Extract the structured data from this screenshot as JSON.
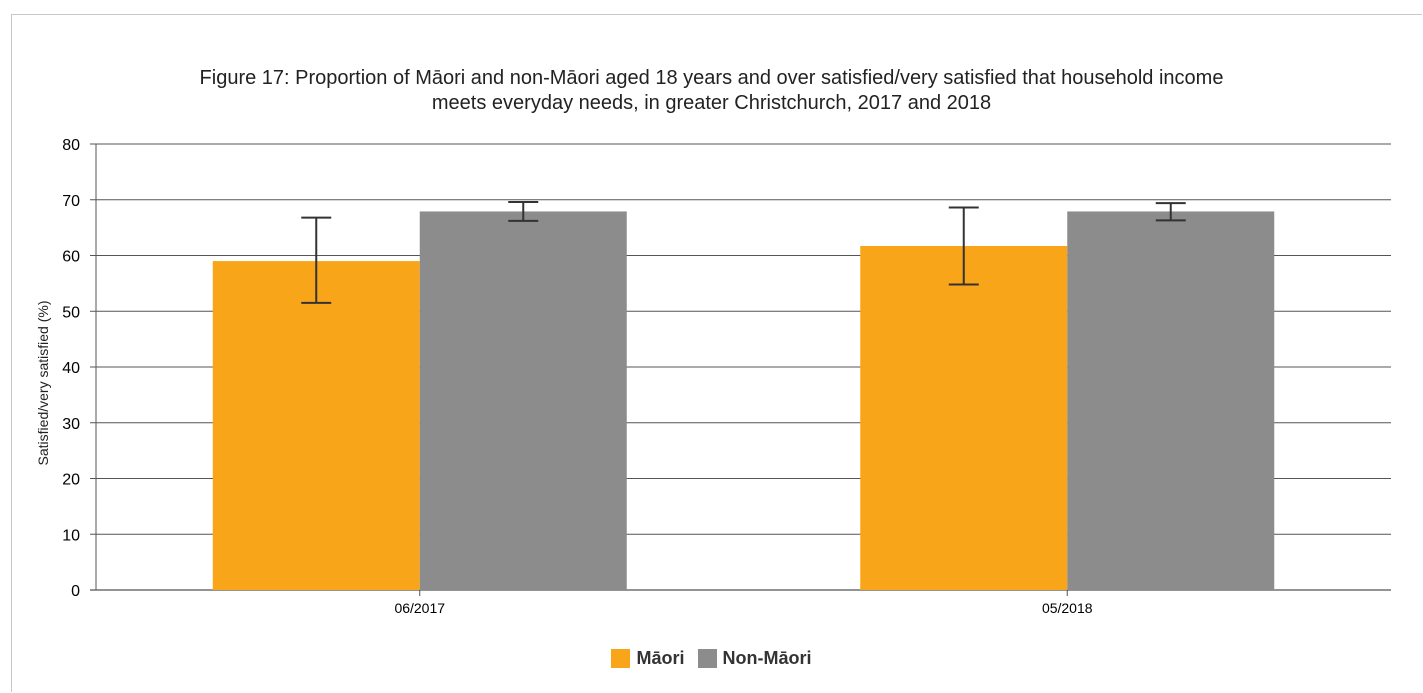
{
  "chart_data": {
    "type": "bar",
    "title_lines": [
      "Figure 17: Proportion of Māori and non-Māori aged 18 years and over satisfied/very satisfied that household income",
      "meets everyday needs, in greater Christchurch, 2017 and 2018"
    ],
    "xlabel": "",
    "ylabel": "Satisfied/very satisfied (%)",
    "ylim": [
      0,
      80
    ],
    "yticks": [
      0,
      10,
      20,
      30,
      40,
      50,
      60,
      70,
      80
    ],
    "categories": [
      "06/2017",
      "05/2018"
    ],
    "grid": true,
    "legend_position": "bottom",
    "series": [
      {
        "name": "Māori",
        "color": "#f9a51a",
        "values": [
          59,
          61.7
        ],
        "error_low": [
          51.5,
          54.8
        ],
        "error_high": [
          66.8,
          68.6
        ]
      },
      {
        "name": "Non-Māori",
        "color": "#8c8c8c",
        "values": [
          67.9,
          67.9
        ],
        "error_low": [
          66.2,
          66.3
        ],
        "error_high": [
          69.6,
          69.4
        ]
      }
    ]
  }
}
